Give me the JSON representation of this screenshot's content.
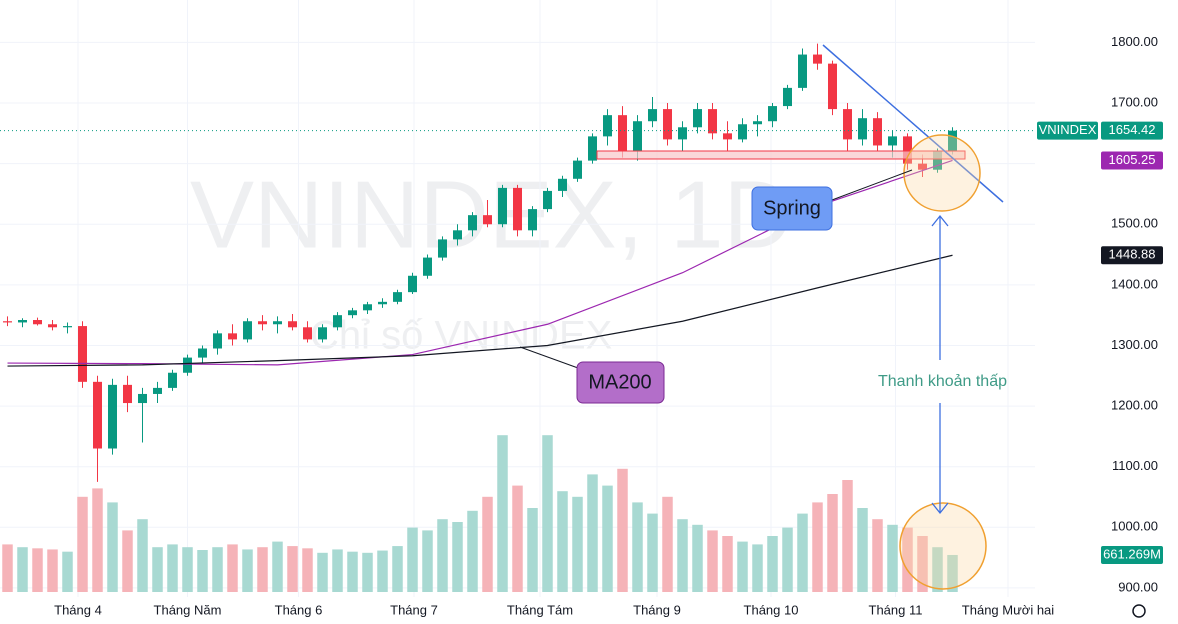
{
  "chart_data": {
    "type": "candlestick",
    "watermark": "VNINDEX, 1D",
    "watermark_subtitle": "Chỉ số VNINDEX",
    "series_name": "VNINDEX",
    "up_color": "#089981",
    "down_color": "#f23645",
    "up_volume_color": "#a8d9d2",
    "down_volume_color": "#f5b3b8",
    "candles": [
      [
        1340,
        1348,
        1332,
        1338
      ],
      [
        1338,
        1345,
        1330,
        1342
      ],
      [
        1342,
        1346,
        1333,
        1335
      ],
      [
        1335,
        1342,
        1325,
        1330
      ],
      [
        1330,
        1338,
        1320,
        1332
      ],
      [
        1332,
        1340,
        1230,
        1240
      ],
      [
        1240,
        1250,
        1075,
        1130
      ],
      [
        1130,
        1245,
        1120,
        1235
      ],
      [
        1235,
        1250,
        1190,
        1205
      ],
      [
        1205,
        1230,
        1140,
        1220
      ],
      [
        1220,
        1240,
        1205,
        1230
      ],
      [
        1230,
        1260,
        1225,
        1255
      ],
      [
        1255,
        1285,
        1250,
        1280
      ],
      [
        1280,
        1300,
        1270,
        1295
      ],
      [
        1295,
        1325,
        1285,
        1320
      ],
      [
        1320,
        1335,
        1300,
        1310
      ],
      [
        1310,
        1345,
        1305,
        1340
      ],
      [
        1340,
        1350,
        1325,
        1335
      ],
      [
        1335,
        1348,
        1320,
        1340
      ],
      [
        1340,
        1352,
        1325,
        1330
      ],
      [
        1330,
        1340,
        1305,
        1310
      ],
      [
        1310,
        1335,
        1305,
        1330
      ],
      [
        1330,
        1355,
        1325,
        1350
      ],
      [
        1350,
        1362,
        1345,
        1358
      ],
      [
        1358,
        1372,
        1352,
        1368
      ],
      [
        1368,
        1378,
        1362,
        1372
      ],
      [
        1372,
        1392,
        1368,
        1388
      ],
      [
        1388,
        1420,
        1385,
        1415
      ],
      [
        1415,
        1450,
        1410,
        1445
      ],
      [
        1445,
        1480,
        1440,
        1475
      ],
      [
        1475,
        1500,
        1465,
        1490
      ],
      [
        1490,
        1520,
        1480,
        1515
      ],
      [
        1515,
        1540,
        1495,
        1500
      ],
      [
        1500,
        1565,
        1495,
        1560
      ],
      [
        1560,
        1565,
        1480,
        1490
      ],
      [
        1490,
        1530,
        1480,
        1525
      ],
      [
        1525,
        1560,
        1520,
        1555
      ],
      [
        1555,
        1580,
        1545,
        1575
      ],
      [
        1575,
        1610,
        1570,
        1605
      ],
      [
        1605,
        1650,
        1600,
        1645
      ],
      [
        1645,
        1690,
        1630,
        1680
      ],
      [
        1680,
        1695,
        1610,
        1620
      ],
      [
        1620,
        1680,
        1605,
        1670
      ],
      [
        1670,
        1710,
        1660,
        1690
      ],
      [
        1690,
        1700,
        1630,
        1640
      ],
      [
        1640,
        1670,
        1620,
        1660
      ],
      [
        1660,
        1700,
        1650,
        1690
      ],
      [
        1690,
        1700,
        1640,
        1650
      ],
      [
        1650,
        1670,
        1620,
        1640
      ],
      [
        1640,
        1675,
        1635,
        1665
      ],
      [
        1665,
        1680,
        1645,
        1670
      ],
      [
        1670,
        1700,
        1660,
        1695
      ],
      [
        1695,
        1730,
        1690,
        1725
      ],
      [
        1725,
        1790,
        1720,
        1780
      ],
      [
        1780,
        1798,
        1755,
        1765
      ],
      [
        1765,
        1770,
        1680,
        1690
      ],
      [
        1690,
        1700,
        1620,
        1640
      ],
      [
        1640,
        1690,
        1630,
        1675
      ],
      [
        1675,
        1685,
        1620,
        1630
      ],
      [
        1630,
        1655,
        1610,
        1645
      ],
      [
        1645,
        1650,
        1590,
        1600
      ],
      [
        1600,
        1615,
        1578,
        1590
      ],
      [
        1590,
        1625,
        1585,
        1620
      ],
      [
        1620,
        1660,
        1615,
        1654.42
      ]
    ],
    "volumes": [
      850,
      800,
      780,
      760,
      720,
      1700,
      1850,
      1600,
      1100,
      1300,
      800,
      850,
      800,
      750,
      800,
      850,
      760,
      800,
      900,
      820,
      780,
      700,
      760,
      720,
      700,
      740,
      820,
      1150,
      1100,
      1300,
      1250,
      1450,
      1700,
      2800,
      1900,
      1500,
      2800,
      1800,
      1700,
      2100,
      1900,
      2200,
      1600,
      1400,
      1700,
      1300,
      1200,
      1100,
      1000,
      900,
      850,
      1000,
      1150,
      1400,
      1600,
      1750,
      2000,
      1500,
      1300,
      1200,
      1150,
      1000,
      800,
      661.269
    ],
    "volume_last": {
      "value": 661.269,
      "label": "661.269M"
    },
    "last_price": 1654.42,
    "ma_series": [
      {
        "color": "#9c27b0",
        "x": [
          0,
          9,
          18,
          27,
          36,
          45,
          54,
          63
        ],
        "values": [
          1271,
          1270,
          1268,
          1285,
          1335,
          1420,
          1530,
          1605.25
        ]
      },
      {
        "name": "MA200",
        "color": "#131722",
        "x": [
          0,
          9,
          18,
          27,
          36,
          45,
          54,
          63
        ],
        "values": [
          1266,
          1268,
          1275,
          1283,
          1300,
          1340,
          1395,
          1448.88
        ]
      }
    ],
    "ylim": [
      885,
      1870
    ],
    "yticks": [
      {
        "value": 1800,
        "label": "1800.00"
      },
      {
        "value": 1700,
        "label": "1700.00"
      },
      {
        "value": 1600,
        "label": "1600.00"
      },
      {
        "value": 1500,
        "label": "1500.00"
      },
      {
        "value": 1400,
        "label": "1400.00"
      },
      {
        "value": 1300,
        "label": "1300.00"
      },
      {
        "value": 1200,
        "label": "1200.00"
      },
      {
        "value": 1100,
        "label": "1100.00"
      },
      {
        "value": 1000,
        "label": "1000.00"
      },
      {
        "value": 900,
        "label": "900.00"
      }
    ],
    "xlim": [
      -0.5,
      68.5
    ],
    "xticks": [
      {
        "value": 4.7,
        "label": "Tháng 4"
      },
      {
        "value": 12,
        "label": "Tháng Năm"
      },
      {
        "value": 19.4,
        "label": "Tháng 6"
      },
      {
        "value": 27.1,
        "label": "Tháng 7"
      },
      {
        "value": 35.5,
        "label": "Tháng Tám"
      },
      {
        "value": 43.3,
        "label": "Tháng 9"
      },
      {
        "value": 50.9,
        "label": "Tháng 10"
      },
      {
        "value": 59.2,
        "label": "Tháng 11"
      },
      {
        "value": 66.7,
        "label": "Tháng Mười hai"
      }
    ],
    "annotations": {
      "spring": "Spring",
      "low_liquidity": "Thanh khoản thấp"
    }
  }
}
